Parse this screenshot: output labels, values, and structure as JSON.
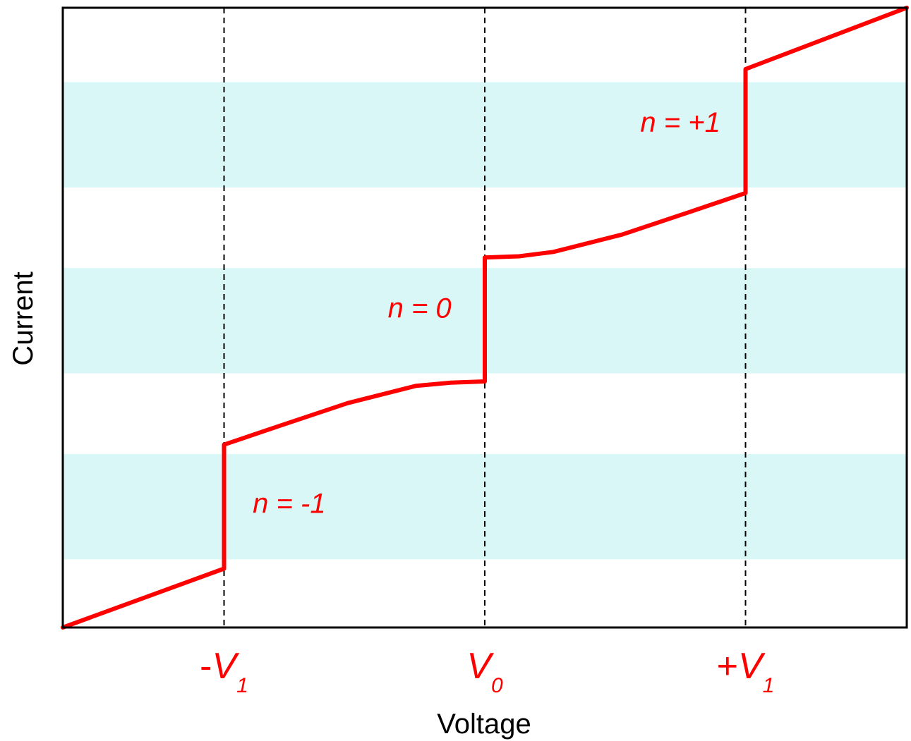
{
  "colors": {
    "curve": "#ff0000",
    "band": "#d9f7f7",
    "frame": "#000000",
    "guide": "#000000",
    "label": "#ff0000"
  },
  "chart_data": {
    "type": "line",
    "title": "",
    "xlabel": "Voltage",
    "ylabel": "Current",
    "xlim": [
      -1.23,
      1.23
    ],
    "ylim": [
      0,
      1
    ],
    "grid": false,
    "legend": "none",
    "x_ticks": [
      {
        "value": -0.76,
        "main": "-V",
        "sub": "1"
      },
      {
        "value": 0,
        "main": "V",
        "sub": "0"
      },
      {
        "value": 0.76,
        "main": "+V",
        "sub": "1"
      }
    ],
    "bands": [
      {
        "y_low": 0.11,
        "y_high": 0.28
      },
      {
        "y_low": 0.41,
        "y_high": 0.58
      },
      {
        "y_low": 0.71,
        "y_high": 0.88
      }
    ],
    "series": [
      {
        "x": [
          -1.23,
          -0.76,
          -0.76,
          -0.6,
          -0.4,
          -0.2,
          -0.1,
          0,
          0,
          0.1,
          0.2,
          0.4,
          0.6,
          0.76,
          0.76,
          1.23
        ],
        "y": [
          0,
          0.095,
          0.295,
          0.325,
          0.362,
          0.39,
          0.395,
          0.397,
          0.597,
          0.599,
          0.606,
          0.634,
          0.671,
          0.701,
          0.901,
          1
        ]
      }
    ],
    "annotations": [
      {
        "text": "n = -1",
        "x": -0.57,
        "y": 0.185
      },
      {
        "text": "n = 0",
        "x": -0.19,
        "y": 0.5
      },
      {
        "text": "n = +1",
        "x": 0.57,
        "y": 0.8
      }
    ]
  }
}
